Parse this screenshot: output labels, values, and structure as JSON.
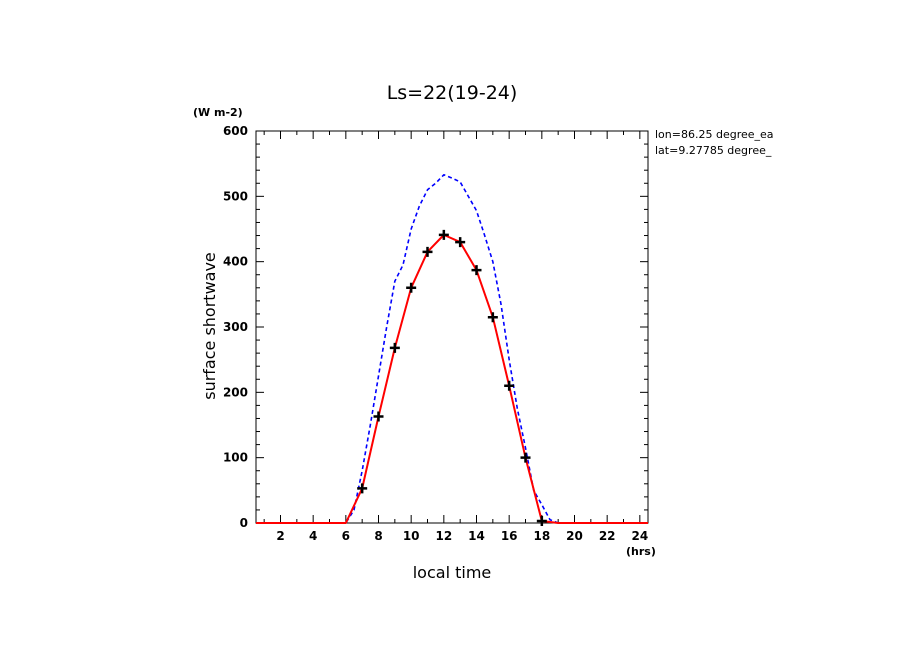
{
  "chart_data": {
    "type": "line",
    "title": "Ls=22(19-24)",
    "xlabel": "local time",
    "ylabel": "surface shortwave",
    "x_unit": "(hrs)",
    "y_unit": "(W m-2)",
    "xlim": [
      0.5,
      24.5
    ],
    "ylim": [
      0,
      600
    ],
    "xticks": [
      2,
      4,
      6,
      8,
      10,
      12,
      14,
      16,
      18,
      20,
      22,
      24
    ],
    "yticks": [
      0,
      100,
      200,
      300,
      400,
      500,
      600
    ],
    "annotations": [
      "lon=86.25 degree_ea",
      "lat=9.27785 degree_"
    ],
    "series": [
      {
        "style": "dashed",
        "color": "#0000ff",
        "x": [
          0.5,
          1,
          2,
          3,
          4,
          5,
          6,
          6.5,
          7,
          7.5,
          8,
          8.5,
          9,
          9.5,
          10,
          10.5,
          11,
          11.5,
          12,
          12.5,
          13,
          13.5,
          14,
          14.5,
          15,
          15.5,
          16,
          16.5,
          17,
          17.5,
          18,
          18.5,
          19,
          20,
          21,
          22,
          23,
          24,
          24.5
        ],
        "y": [
          0,
          0,
          0,
          0,
          0,
          0,
          0,
          20,
          80,
          150,
          225,
          300,
          370,
          395,
          450,
          485,
          510,
          520,
          533,
          528,
          522,
          500,
          478,
          440,
          400,
          335,
          250,
          175,
          115,
          50,
          28,
          5,
          0,
          0,
          0,
          0,
          0,
          0,
          0
        ]
      },
      {
        "style": "solid",
        "color": "#ff0000",
        "x": [
          0.5,
          1,
          2,
          3,
          4,
          5,
          6,
          7,
          8,
          9,
          10,
          11,
          12,
          13,
          14,
          15,
          16,
          17,
          18,
          19,
          20,
          21,
          22,
          23,
          24,
          24.5
        ],
        "y": [
          0,
          0,
          0,
          0,
          0,
          0,
          0,
          53,
          163,
          268,
          360,
          415,
          441,
          430,
          387,
          315,
          210,
          100,
          3,
          0,
          0,
          0,
          0,
          0,
          0,
          0
        ]
      },
      {
        "style": "markers",
        "marker": "plus",
        "color": "#000000",
        "x": [
          7,
          8,
          9,
          10,
          11,
          12,
          13,
          14,
          15,
          16,
          17,
          18
        ],
        "y": [
          53,
          163,
          268,
          360,
          415,
          441,
          430,
          387,
          315,
          210,
          100,
          3
        ]
      }
    ]
  }
}
